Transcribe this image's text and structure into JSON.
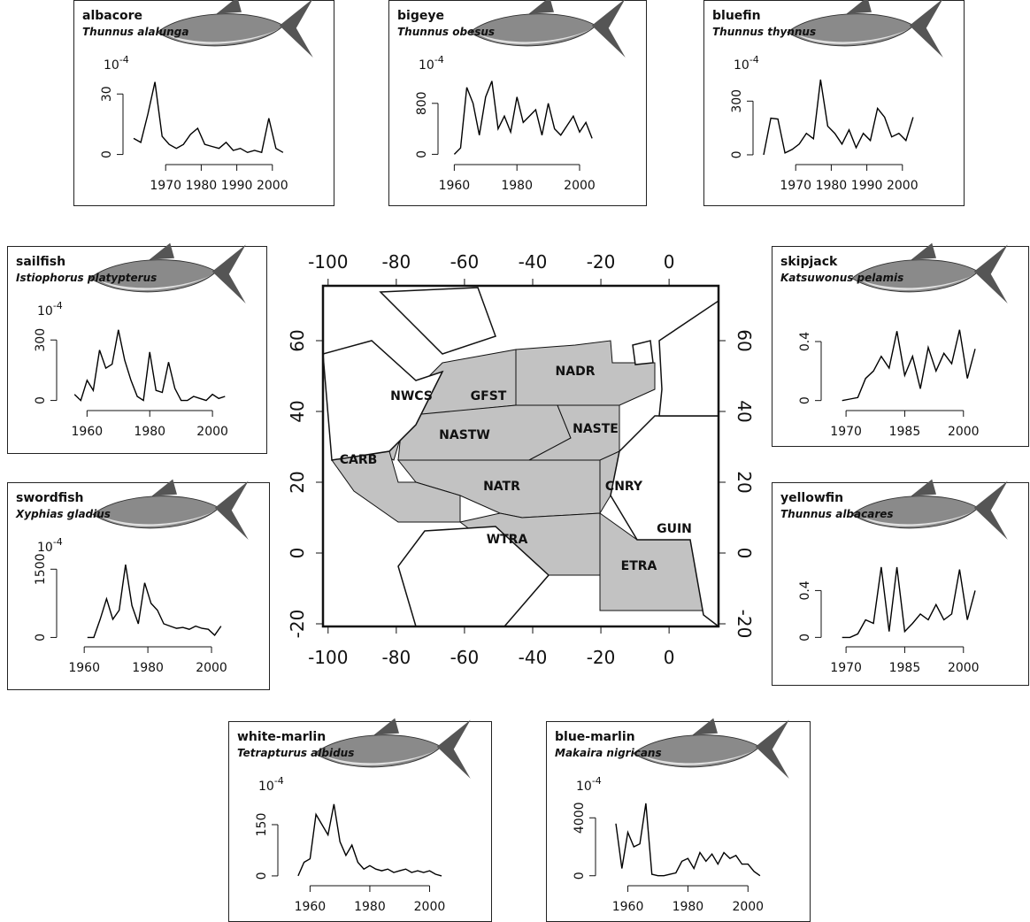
{
  "chart_data": [
    {
      "type": "line",
      "title": "albacore",
      "subtitle": "Thunnus alalunga",
      "y_multiplier": {
        "base": "10",
        "exponent": "-4"
      },
      "color": "#000000",
      "x": [
        1961,
        1963,
        1965,
        1967,
        1969,
        1971,
        1973,
        1975,
        1977,
        1979,
        1981,
        1983,
        1985,
        1987,
        1989,
        1991,
        1993,
        1995,
        1997,
        1999,
        2001,
        2003
      ],
      "values": [
        8,
        6,
        20,
        36,
        9,
        5,
        3,
        5,
        10,
        13,
        5,
        4,
        3,
        6,
        2,
        3,
        1,
        2,
        1,
        18,
        3,
        1
      ],
      "xlim": [
        1959.5,
        2010
      ],
      "ylim": [
        -1.5,
        38
      ],
      "xticks": [
        1970,
        1980,
        1990,
        2000
      ],
      "yticks": [
        0,
        30
      ]
    },
    {
      "type": "line",
      "title": "bigeye",
      "subtitle": "Thunnus obesus",
      "y_multiplier": {
        "base": "10",
        "exponent": "-4"
      },
      "color": "#000000",
      "x": [
        1960,
        1962,
        1964,
        1966,
        1968,
        1970,
        1972,
        1974,
        1976,
        1978,
        1980,
        1982,
        1984,
        1986,
        1988,
        1990,
        1992,
        1994,
        1996,
        1998,
        2000,
        2002,
        2004
      ],
      "values": [
        0,
        100,
        1050,
        800,
        300,
        900,
        1150,
        400,
        600,
        350,
        900,
        500,
        600,
        700,
        300,
        800,
        400,
        300,
        450,
        600,
        350,
        500,
        250
      ],
      "xlim": [
        1956.5,
        2013
      ],
      "ylim": [
        -50,
        1200
      ],
      "xticks": [
        1960,
        1980,
        2000
      ],
      "yticks": [
        0,
        800
      ]
    },
    {
      "type": "line",
      "title": "bluefin",
      "subtitle": "Thunnus thynnus",
      "y_multiplier": {
        "base": "10",
        "exponent": "-4"
      },
      "color": "#000000",
      "x": [
        1961,
        1963,
        1965,
        1967,
        1969,
        1971,
        1973,
        1975,
        1977,
        1979,
        1981,
        1983,
        1985,
        1987,
        1989,
        1991,
        1993,
        1995,
        1997,
        1999,
        2001,
        2003
      ],
      "values": [
        0,
        205,
        200,
        10,
        30,
        60,
        120,
        90,
        420,
        160,
        120,
        60,
        140,
        40,
        120,
        80,
        260,
        210,
        100,
        120,
        80,
        210
      ],
      "xlim": [
        1959.5,
        2010
      ],
      "ylim": [
        -15,
        430
      ],
      "xticks": [
        1970,
        1980,
        1990,
        2000
      ],
      "yticks": [
        0,
        300
      ]
    },
    {
      "type": "line",
      "title": "sailfish",
      "subtitle": "Istiophorus platypterus",
      "y_multiplier": {
        "base": "10",
        "exponent": "-4"
      },
      "color": "#000000",
      "x": [
        1956,
        1958,
        1960,
        1962,
        1964,
        1966,
        1968,
        1970,
        1972,
        1974,
        1976,
        1978,
        1980,
        1982,
        1984,
        1986,
        1988,
        1990,
        1992,
        1994,
        1996,
        1998,
        2000,
        2002,
        2004
      ],
      "values": [
        30,
        0,
        100,
        50,
        250,
        160,
        180,
        350,
        200,
        100,
        20,
        0,
        240,
        50,
        40,
        190,
        60,
        0,
        0,
        20,
        10,
        0,
        30,
        10,
        20
      ],
      "xlim": [
        1952,
        2009
      ],
      "ylim": [
        -15,
        380
      ],
      "xticks": [
        1960,
        1980,
        2000
      ],
      "yticks": [
        0,
        300
      ]
    },
    {
      "type": "line",
      "title": "skipjack",
      "subtitle": "Katsuwonus pelamis",
      "color": "#000000",
      "x": [
        1969,
        1971,
        1973,
        1975,
        1977,
        1979,
        1981,
        1983,
        1985,
        1987,
        1989,
        1991,
        1993,
        1995,
        1997,
        1999,
        2001,
        2003
      ],
      "values": [
        0,
        0.01,
        0.02,
        0.15,
        0.2,
        0.3,
        0.22,
        0.47,
        0.17,
        0.3,
        0.08,
        0.36,
        0.2,
        0.32,
        0.25,
        0.48,
        0.15,
        0.35
      ],
      "xlim": [
        1965,
        2010
      ],
      "ylim": [
        -0.02,
        0.52
      ],
      "xticks": [
        1970,
        1985,
        2000
      ],
      "yticks": [
        0,
        0.4
      ]
    },
    {
      "type": "line",
      "title": "swordfish",
      "subtitle": "Xyphias gladius",
      "y_multiplier": {
        "base": "10",
        "exponent": "-4"
      },
      "color": "#000000",
      "x": [
        1961,
        1963,
        1965,
        1967,
        1969,
        1971,
        1973,
        1975,
        1977,
        1979,
        1981,
        1983,
        1985,
        1987,
        1989,
        1991,
        1993,
        1995,
        1997,
        1999,
        2001,
        2003
      ],
      "values": [
        0,
        0,
        400,
        850,
        400,
        600,
        1600,
        700,
        300,
        1200,
        750,
        600,
        300,
        250,
        200,
        220,
        180,
        250,
        200,
        180,
        50,
        250
      ],
      "xlim": [
        1953,
        2010
      ],
      "ylim": [
        -50,
        1700
      ],
      "xticks": [
        1960,
        1980,
        2000
      ],
      "yticks": [
        0,
        1500
      ]
    },
    {
      "type": "line",
      "title": "yellowfin",
      "subtitle": "Thunnus albacares",
      "color": "#000000",
      "x": [
        1969,
        1971,
        1973,
        1975,
        1977,
        1979,
        1981,
        1983,
        1985,
        1987,
        1989,
        1991,
        1993,
        1995,
        1997,
        1999,
        2001,
        2003
      ],
      "values": [
        0,
        0,
        0.03,
        0.15,
        0.12,
        0.6,
        0.05,
        0.6,
        0.05,
        0.12,
        0.2,
        0.15,
        0.28,
        0.15,
        0.2,
        0.58,
        0.15,
        0.4
      ],
      "xlim": [
        1965,
        2010
      ],
      "ylim": [
        -0.02,
        0.66
      ],
      "xticks": [
        1970,
        1985,
        2000
      ],
      "yticks": [
        0,
        0.4
      ]
    },
    {
      "type": "line",
      "title": "white-marlin",
      "subtitle": "Tetrapturus albidus",
      "y_multiplier": {
        "base": "10",
        "exponent": "-4"
      },
      "color": "#000000",
      "x": [
        1956,
        1958,
        1960,
        1962,
        1964,
        1966,
        1968,
        1970,
        1972,
        1974,
        1976,
        1978,
        1980,
        1982,
        1984,
        1986,
        1988,
        1990,
        1992,
        1994,
        1996,
        1998,
        2000,
        2002,
        2004
      ],
      "values": [
        0,
        40,
        50,
        180,
        150,
        120,
        210,
        100,
        60,
        90,
        40,
        20,
        30,
        20,
        15,
        20,
        10,
        15,
        20,
        10,
        15,
        10,
        15,
        5,
        0
      ],
      "xlim": [
        1951,
        2012
      ],
      "ylim": [
        -8,
        225
      ],
      "xticks": [
        1960,
        1980,
        2000
      ],
      "yticks": [
        0,
        150
      ]
    },
    {
      "type": "line",
      "title": "blue-marlin",
      "subtitle": "Makaira nigricans",
      "y_multiplier": {
        "base": "10",
        "exponent": "-4"
      },
      "color": "#000000",
      "x": [
        1956,
        1958,
        1960,
        1962,
        1964,
        1966,
        1968,
        1970,
        1972,
        1974,
        1976,
        1978,
        1980,
        1982,
        1984,
        1986,
        1988,
        1990,
        1992,
        1994,
        1996,
        1998,
        2000,
        2002,
        2004
      ],
      "values": [
        3600,
        500,
        3000,
        2000,
        2200,
        5000,
        100,
        0,
        0,
        100,
        200,
        1000,
        1200,
        500,
        1600,
        1000,
        1500,
        800,
        1600,
        1200,
        1400,
        800,
        800,
        300,
        0
      ],
      "xlim": [
        1951,
        2012
      ],
      "ylim": [
        -200,
        5300
      ],
      "xticks": [
        1960,
        1980,
        2000
      ],
      "yticks": [
        0,
        4000
      ]
    },
    {
      "type": "map",
      "xlim": [
        -101.5,
        14.5
      ],
      "ylim": [
        -20.75,
        75.5
      ],
      "xticks": [
        -100,
        -80,
        -60,
        -40,
        -20,
        0
      ],
      "yticks": [
        -20,
        0,
        20,
        40,
        60
      ],
      "regions": [
        "NADR",
        "NWCS",
        "GFST",
        "NASTW",
        "NASTE",
        "CARB",
        "NATR",
        "CNRY",
        "WTRA",
        "GUIN",
        "ETRA"
      ]
    }
  ]
}
